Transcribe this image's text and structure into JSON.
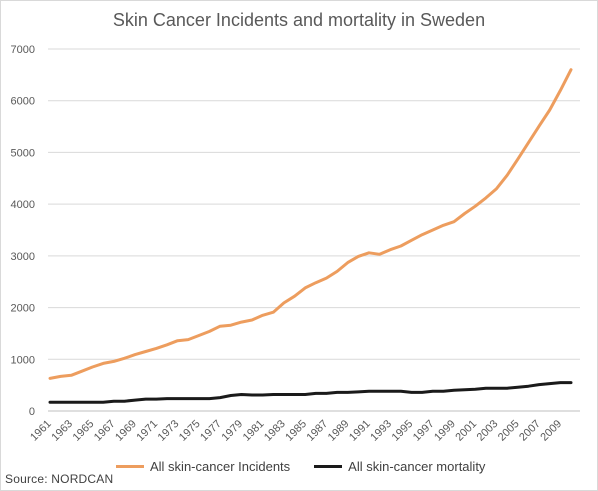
{
  "chart_data": {
    "type": "line",
    "title": "Skin Cancer Incidents and mortality in Sweden",
    "source": "Source: NORDCAN",
    "x": [
      1961,
      1962,
      1963,
      1964,
      1965,
      1966,
      1967,
      1968,
      1969,
      1970,
      1971,
      1972,
      1973,
      1974,
      1975,
      1976,
      1977,
      1978,
      1979,
      1980,
      1981,
      1982,
      1983,
      1984,
      1985,
      1986,
      1987,
      1988,
      1989,
      1990,
      1991,
      1992,
      1993,
      1994,
      1995,
      1996,
      1997,
      1998,
      1999,
      2000,
      2001,
      2002,
      2003,
      2004,
      2005,
      2006,
      2007,
      2008,
      2009,
      2010
    ],
    "x_tick_labels": [
      "1961",
      "1963",
      "1965",
      "1967",
      "1969",
      "1971",
      "1973",
      "1975",
      "1977",
      "1979",
      "1981",
      "1983",
      "1985",
      "1987",
      "1989",
      "1991",
      "1993",
      "1995",
      "1997",
      "1999",
      "2001",
      "2003",
      "2005",
      "2007",
      "2009"
    ],
    "ylim": [
      0,
      7000
    ],
    "y_ticks": [
      0,
      1000,
      2000,
      3000,
      4000,
      5000,
      6000,
      7000
    ],
    "grid": true,
    "legend_position": "bottom",
    "series": [
      {
        "name": "All skin-cancer Incidents",
        "color": "#ED9D5E",
        "values": [
          630,
          670,
          690,
          770,
          850,
          920,
          960,
          1020,
          1090,
          1150,
          1210,
          1280,
          1360,
          1380,
          1460,
          1540,
          1640,
          1660,
          1720,
          1760,
          1850,
          1910,
          2090,
          2220,
          2380,
          2480,
          2570,
          2700,
          2870,
          2990,
          3060,
          3030,
          3120,
          3190,
          3300,
          3410,
          3500,
          3590,
          3660,
          3820,
          3960,
          4120,
          4300,
          4560,
          4870,
          5190,
          5510,
          5820,
          6200,
          6600
        ]
      },
      {
        "name": "All skin-cancer mortality",
        "color": "#1a1a1a",
        "values": [
          170,
          170,
          170,
          170,
          170,
          170,
          190,
          190,
          210,
          230,
          230,
          240,
          240,
          240,
          240,
          240,
          260,
          300,
          320,
          310,
          310,
          320,
          320,
          320,
          320,
          340,
          340,
          360,
          360,
          370,
          380,
          380,
          380,
          380,
          360,
          360,
          380,
          380,
          400,
          410,
          420,
          440,
          440,
          440,
          460,
          480,
          510,
          530,
          550,
          550
        ]
      }
    ]
  }
}
